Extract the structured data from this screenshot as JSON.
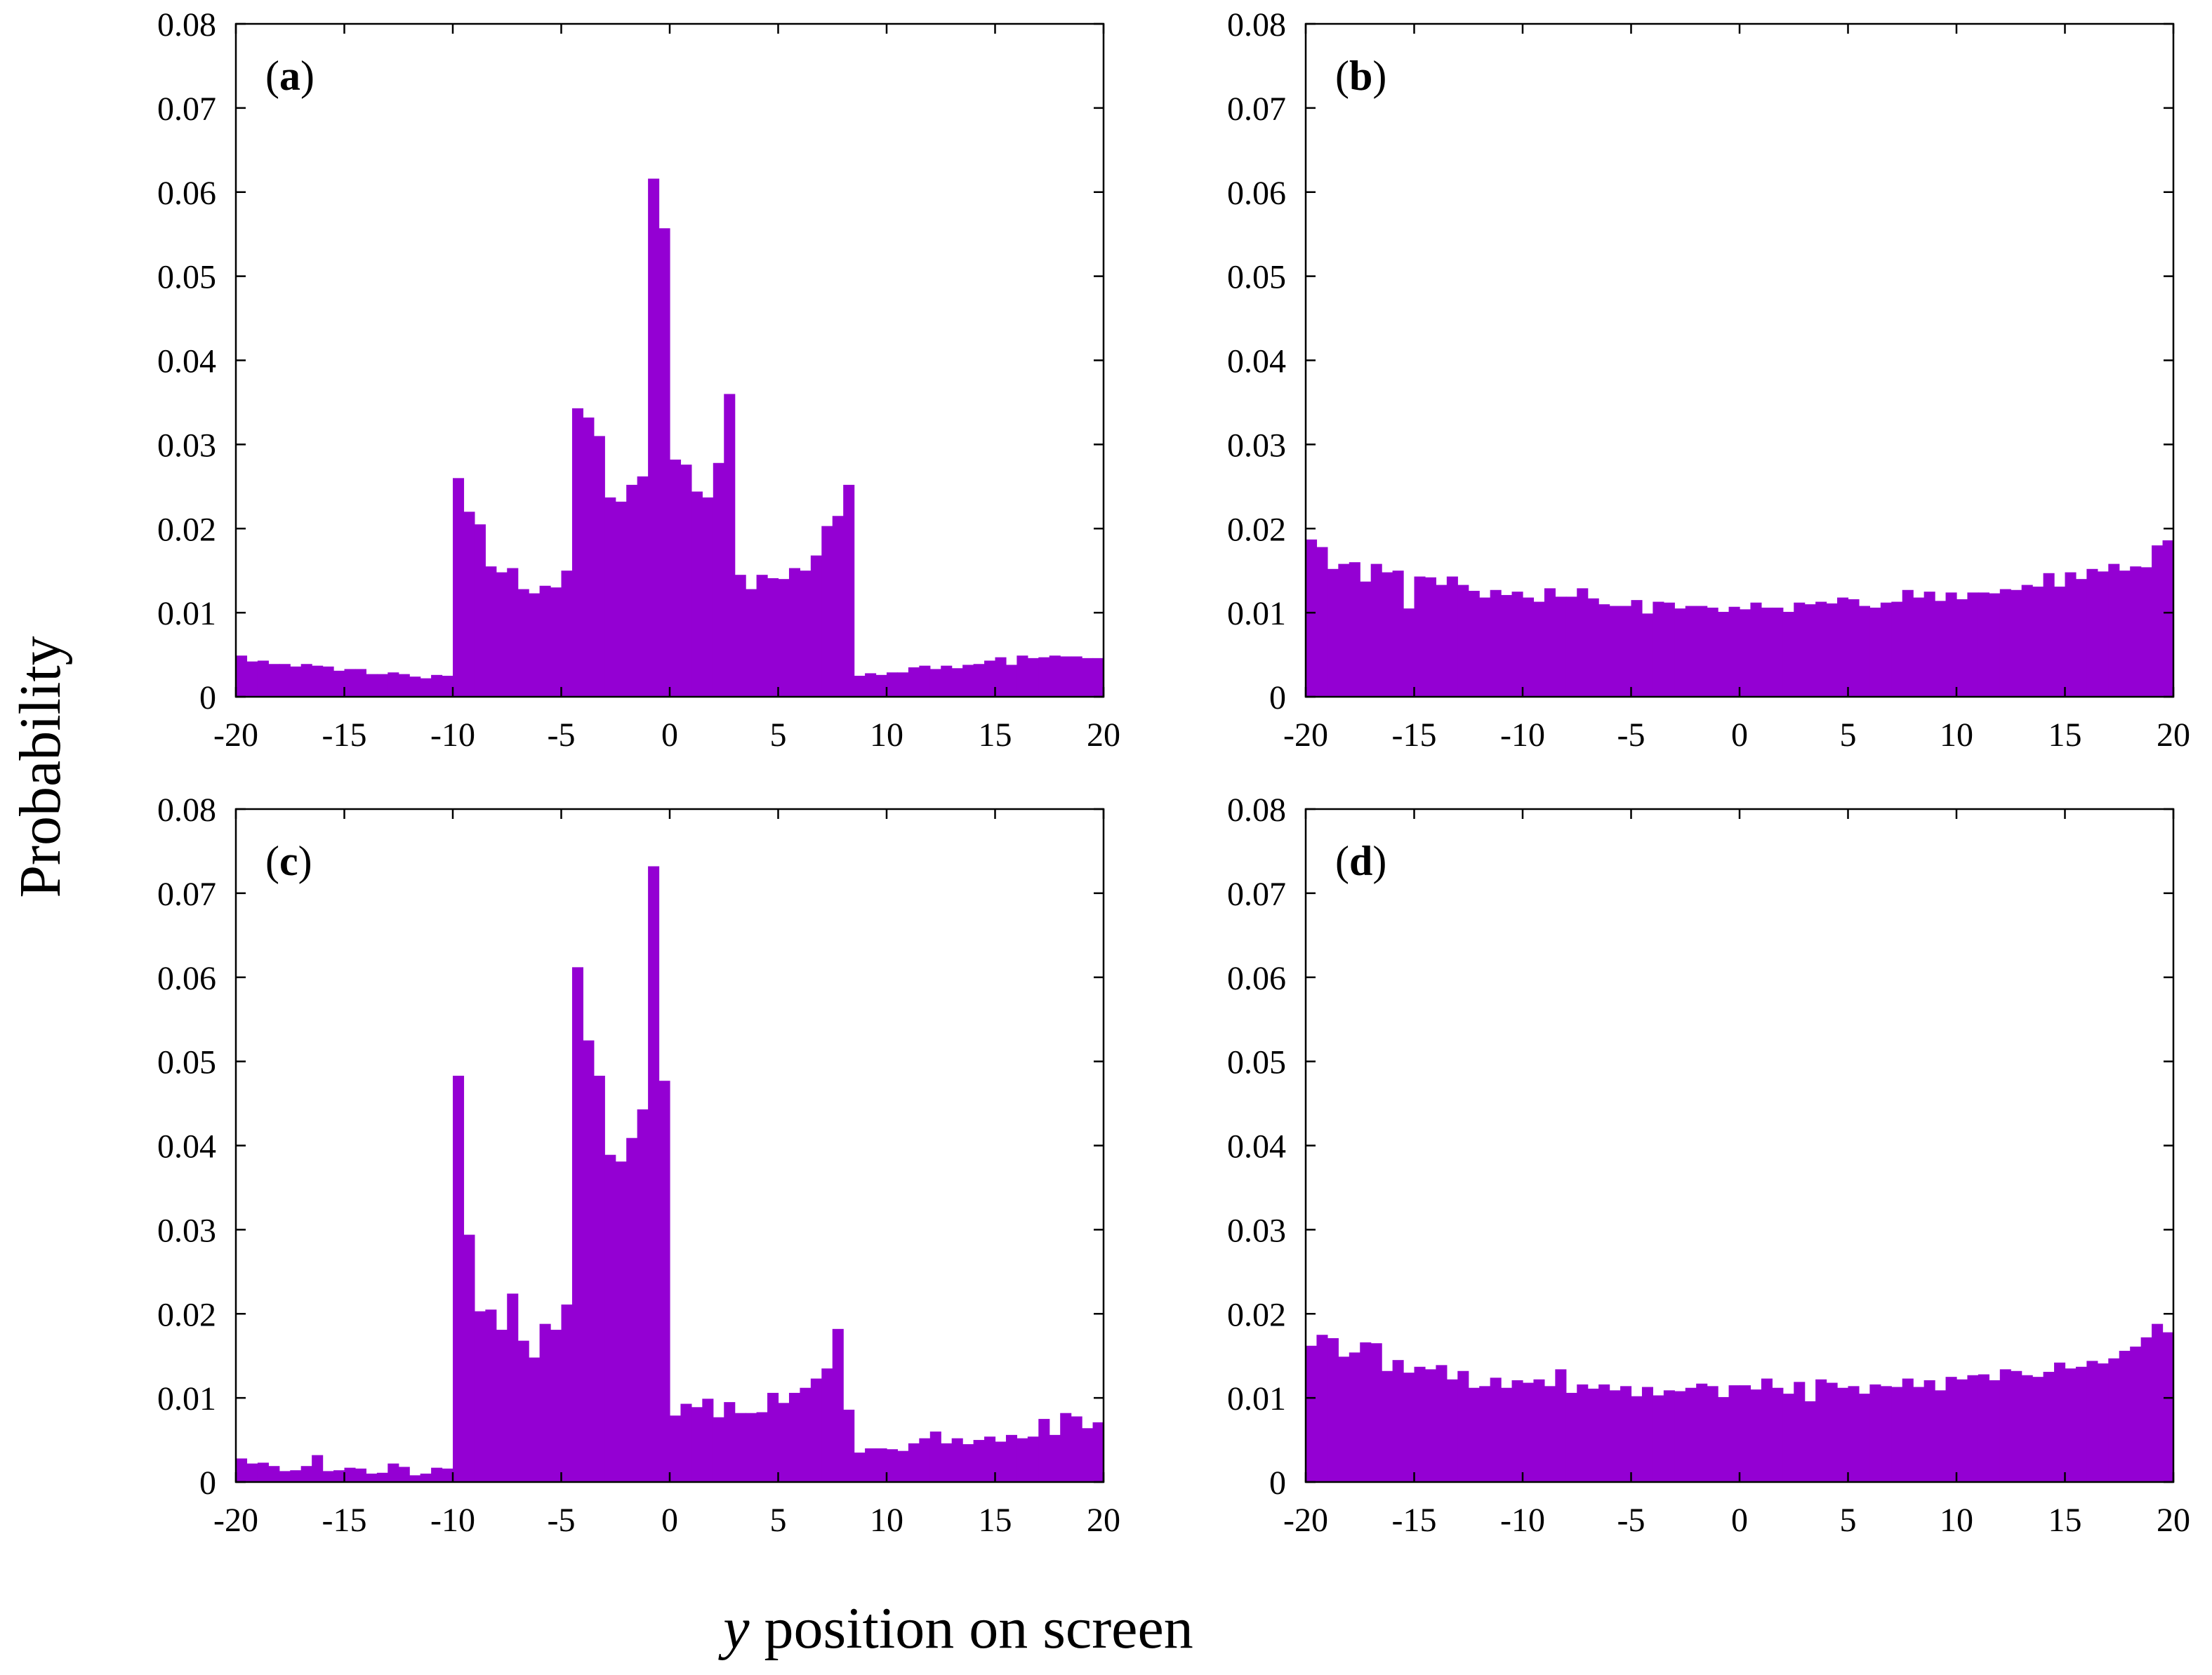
{
  "figure": {
    "ylabel": "Probability",
    "xlabel_var": "y",
    "xlabel_rest": " position on screen"
  },
  "colors": {
    "bar": "#9400d3",
    "axis": "#000000"
  },
  "chart_data": [
    {
      "type": "bar",
      "panel_label": "(a)",
      "label_letter": "a",
      "bin_start": -20,
      "bin_width": 0.5,
      "xlim": [
        -20,
        20
      ],
      "ylim": [
        0,
        0.08
      ],
      "xticks": [
        "-20",
        "-15",
        "-10",
        "-5",
        "0",
        "5",
        "10",
        "15",
        "20"
      ],
      "yticks": [
        "0",
        "0.01",
        "0.02",
        "0.03",
        "0.04",
        "0.05",
        "0.06",
        "0.07",
        "0.08"
      ],
      "values": [
        0.0049,
        0.0042,
        0.0043,
        0.0039,
        0.0039,
        0.0036,
        0.0039,
        0.0037,
        0.0036,
        0.0031,
        0.0033,
        0.0033,
        0.0027,
        0.0027,
        0.0029,
        0.0027,
        0.0024,
        0.0022,
        0.0026,
        0.0025,
        0.026,
        0.022,
        0.0205,
        0.0155,
        0.0148,
        0.0153,
        0.0128,
        0.0123,
        0.0132,
        0.013,
        0.015,
        0.0343,
        0.0332,
        0.031,
        0.0237,
        0.0232,
        0.0252,
        0.0262,
        0.0616,
        0.0557,
        0.0282,
        0.0276,
        0.0244,
        0.0237,
        0.0278,
        0.036,
        0.0145,
        0.0128,
        0.0145,
        0.0141,
        0.014,
        0.0153,
        0.015,
        0.0168,
        0.0203,
        0.0215,
        0.0252,
        0.0025,
        0.0028,
        0.0026,
        0.0029,
        0.0029,
        0.0035,
        0.0037,
        0.0033,
        0.0037,
        0.0034,
        0.0038,
        0.0039,
        0.0043,
        0.0047,
        0.0038,
        0.0049,
        0.0046,
        0.0047,
        0.0049,
        0.0048,
        0.0048,
        0.0046,
        0.0046
      ]
    },
    {
      "type": "bar",
      "panel_label": "(b)",
      "label_letter": "b",
      "bin_start": -20,
      "bin_width": 0.5,
      "xlim": [
        -20,
        20
      ],
      "ylim": [
        0,
        0.08
      ],
      "xticks": [
        "-20",
        "-15",
        "-10",
        "-5",
        "0",
        "5",
        "10",
        "15",
        "20"
      ],
      "yticks": [
        "0",
        "0.01",
        "0.02",
        "0.03",
        "0.04",
        "0.05",
        "0.06",
        "0.07",
        "0.08"
      ],
      "values": [
        0.0187,
        0.0178,
        0.0152,
        0.0158,
        0.016,
        0.0137,
        0.0158,
        0.0148,
        0.015,
        0.0105,
        0.0143,
        0.0142,
        0.0133,
        0.0143,
        0.0133,
        0.0126,
        0.0118,
        0.0127,
        0.0121,
        0.0125,
        0.0118,
        0.0113,
        0.0129,
        0.0119,
        0.0119,
        0.0129,
        0.0117,
        0.011,
        0.0108,
        0.0108,
        0.0115,
        0.0099,
        0.0113,
        0.0112,
        0.0105,
        0.0108,
        0.0108,
        0.0106,
        0.0101,
        0.0107,
        0.0104,
        0.0112,
        0.0106,
        0.0106,
        0.0101,
        0.0112,
        0.011,
        0.0113,
        0.0111,
        0.0118,
        0.0116,
        0.0108,
        0.0106,
        0.0112,
        0.0113,
        0.0127,
        0.0118,
        0.0125,
        0.0114,
        0.0124,
        0.0116,
        0.0124,
        0.0124,
        0.0123,
        0.0128,
        0.0127,
        0.0133,
        0.0131,
        0.0147,
        0.0131,
        0.0148,
        0.014,
        0.0152,
        0.0149,
        0.0158,
        0.015,
        0.0155,
        0.0154,
        0.018,
        0.0186
      ]
    },
    {
      "type": "bar",
      "panel_label": "(c)",
      "label_letter": "c",
      "bin_start": -20,
      "bin_width": 0.5,
      "xlim": [
        -20,
        20
      ],
      "ylim": [
        0,
        0.08
      ],
      "xticks": [
        "-20",
        "-15",
        "-10",
        "-5",
        "0",
        "5",
        "10",
        "15",
        "20"
      ],
      "yticks": [
        "0",
        "0.01",
        "0.02",
        "0.03",
        "0.04",
        "0.05",
        "0.06",
        "0.07",
        "0.08"
      ],
      "values": [
        0.0028,
        0.0022,
        0.0023,
        0.0019,
        0.0013,
        0.0014,
        0.0019,
        0.0032,
        0.0013,
        0.0014,
        0.0017,
        0.0016,
        0.001,
        0.0011,
        0.0022,
        0.0018,
        0.0008,
        0.001,
        0.0017,
        0.0016,
        0.0483,
        0.0294,
        0.0203,
        0.0205,
        0.0181,
        0.0224,
        0.0168,
        0.0148,
        0.0188,
        0.0181,
        0.0211,
        0.0612,
        0.0525,
        0.0483,
        0.0389,
        0.0381,
        0.0409,
        0.0443,
        0.0732,
        0.0477,
        0.0079,
        0.0093,
        0.0089,
        0.0099,
        0.0077,
        0.0095,
        0.0082,
        0.0082,
        0.0083,
        0.0106,
        0.0094,
        0.0106,
        0.0112,
        0.0123,
        0.0135,
        0.0182,
        0.0086,
        0.0035,
        0.004,
        0.004,
        0.0039,
        0.0037,
        0.0046,
        0.0052,
        0.006,
        0.0046,
        0.0052,
        0.0045,
        0.005,
        0.0054,
        0.0048,
        0.0056,
        0.0052,
        0.0054,
        0.0075,
        0.0056,
        0.0082,
        0.0078,
        0.0064,
        0.0071
      ]
    },
    {
      "type": "bar",
      "panel_label": "(d)",
      "label_letter": "d",
      "bin_start": -20,
      "bin_width": 0.5,
      "xlim": [
        -20,
        20
      ],
      "ylim": [
        0,
        0.08
      ],
      "xticks": [
        "-20",
        "-15",
        "-10",
        "-5",
        "0",
        "5",
        "10",
        "15",
        "20"
      ],
      "yticks": [
        "0",
        "0.01",
        "0.02",
        "0.03",
        "0.04",
        "0.05",
        "0.06",
        "0.07",
        "0.08"
      ],
      "values": [
        0.0162,
        0.0175,
        0.0171,
        0.0149,
        0.0154,
        0.0166,
        0.0165,
        0.0132,
        0.0145,
        0.013,
        0.0137,
        0.0134,
        0.0139,
        0.0122,
        0.0132,
        0.0112,
        0.0114,
        0.0124,
        0.0112,
        0.0121,
        0.0118,
        0.0122,
        0.0114,
        0.0134,
        0.0106,
        0.0116,
        0.0111,
        0.0116,
        0.0109,
        0.0114,
        0.0102,
        0.0113,
        0.0103,
        0.0109,
        0.0108,
        0.0112,
        0.0117,
        0.0114,
        0.0101,
        0.0115,
        0.0115,
        0.011,
        0.0123,
        0.0112,
        0.0105,
        0.0119,
        0.0096,
        0.0122,
        0.0118,
        0.0112,
        0.0114,
        0.0105,
        0.0116,
        0.0114,
        0.0113,
        0.0123,
        0.0113,
        0.0121,
        0.0109,
        0.0125,
        0.0122,
        0.0127,
        0.0128,
        0.0121,
        0.0134,
        0.0132,
        0.0127,
        0.0125,
        0.0131,
        0.0142,
        0.0135,
        0.0137,
        0.0144,
        0.0141,
        0.0147,
        0.0156,
        0.0161,
        0.0172,
        0.0188,
        0.0178
      ]
    }
  ]
}
